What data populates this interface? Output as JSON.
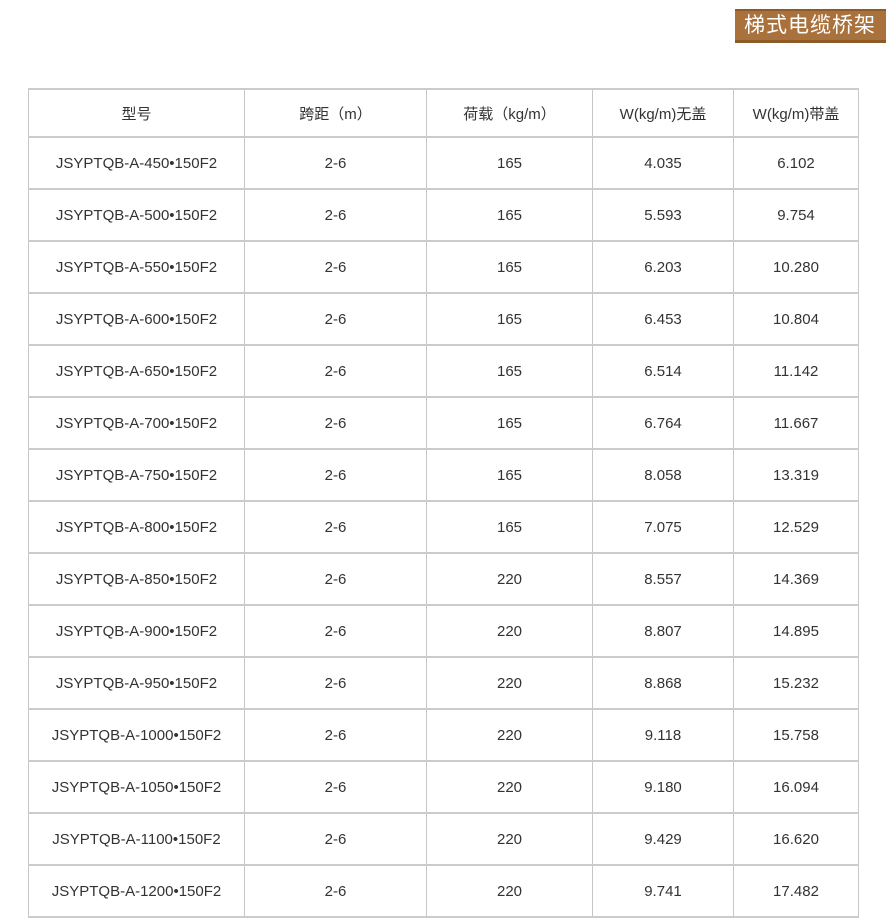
{
  "badge": {
    "label": "梯式电缆桥架",
    "bg_color": "#a9713c",
    "border_color": "#8d5b28",
    "text_color": "#ffffff"
  },
  "table": {
    "columns": [
      "型号",
      "跨距（m）",
      "荷载（kg/m）",
      "W(kg/m)无盖",
      "W(kg/m)带盖"
    ],
    "rows": [
      [
        "JSYPTQB-A-450•150F2",
        "2-6",
        "165",
        "4.035",
        "6.102"
      ],
      [
        "JSYPTQB-A-500•150F2",
        "2-6",
        "165",
        "5.593",
        "9.754"
      ],
      [
        "JSYPTQB-A-550•150F2",
        "2-6",
        "165",
        "6.203",
        "10.280"
      ],
      [
        "JSYPTQB-A-600•150F2",
        "2-6",
        "165",
        "6.453",
        "10.804"
      ],
      [
        "JSYPTQB-A-650•150F2",
        "2-6",
        "165",
        "6.514",
        "11.142"
      ],
      [
        "JSYPTQB-A-700•150F2",
        "2-6",
        "165",
        "6.764",
        "11.667"
      ],
      [
        "JSYPTQB-A-750•150F2",
        "2-6",
        "165",
        "8.058",
        "13.319"
      ],
      [
        "JSYPTQB-A-800•150F2",
        "2-6",
        "165",
        "7.075",
        "12.529"
      ],
      [
        "JSYPTQB-A-850•150F2",
        "2-6",
        "220",
        "8.557",
        "14.369"
      ],
      [
        "JSYPTQB-A-900•150F2",
        "2-6",
        "220",
        "8.807",
        "14.895"
      ],
      [
        "JSYPTQB-A-950•150F2",
        "2-6",
        "220",
        "8.868",
        "15.232"
      ],
      [
        "JSYPTQB-A-1000•150F2",
        "2-6",
        "220",
        "9.118",
        "15.758"
      ],
      [
        "JSYPTQB-A-1050•150F2",
        "2-6",
        "220",
        "9.180",
        "16.094"
      ],
      [
        "JSYPTQB-A-1100•150F2",
        "2-6",
        "220",
        "9.429",
        "16.620"
      ],
      [
        "JSYPTQB-A-1200•150F2",
        "2-6",
        "220",
        "9.741",
        "17.482"
      ]
    ]
  }
}
